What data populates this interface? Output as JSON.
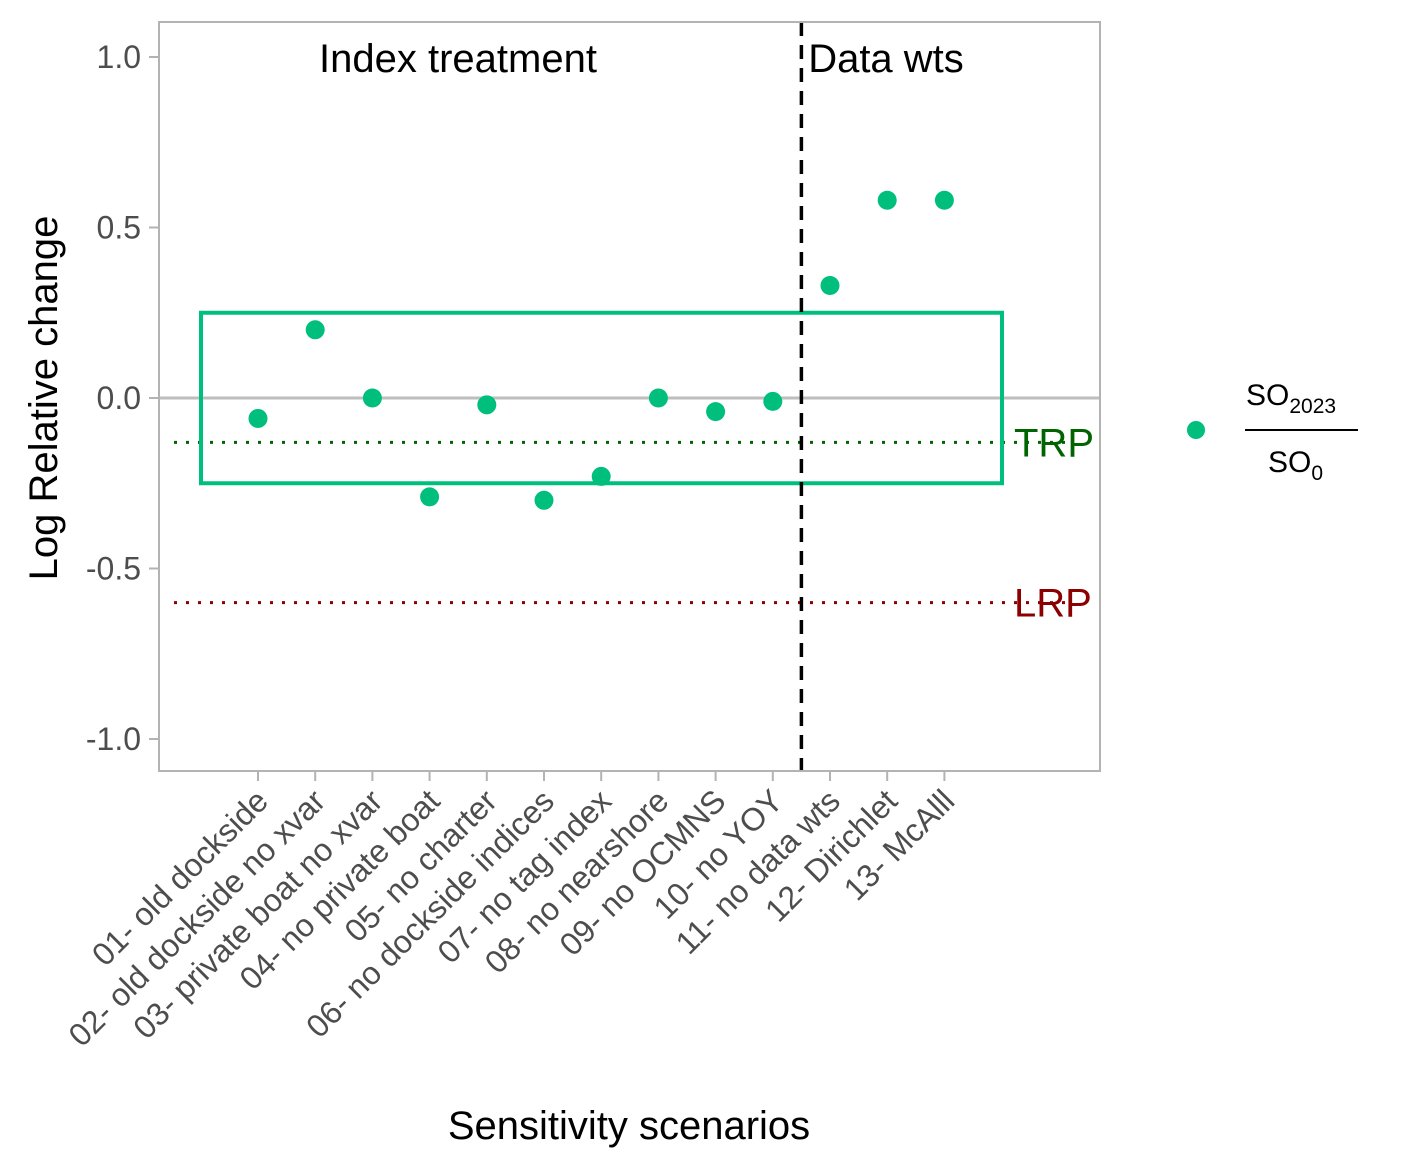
{
  "chart_data": {
    "type": "scatter",
    "xlabel": "Sensitivity scenarios",
    "ylabel": "Log Relative change",
    "ylim": [
      -1.1,
      1.1
    ],
    "yticks": [
      1.0,
      0.5,
      0.0,
      -0.5,
      -1.0
    ],
    "ytick_labels": [
      "1.0",
      "0.5",
      "0.0",
      "-0.5",
      "-1.0"
    ],
    "categories": [
      "01- old dockside",
      "02- old dockside no xvar",
      "03- private boat no xvar",
      "04- no private boat",
      "05- no charter",
      "06- no dockside indices",
      "07- no tag index",
      "08- no nearshore",
      "09- no OCMNS",
      "10- no YOY",
      "11- no data wts",
      "12- Dirichlet",
      "13- McAlll"
    ],
    "series": [
      {
        "legend_numerator": "SO",
        "legend_numerator_sub": "2023",
        "legend_denominator": "SO",
        "legend_denominator_sub": "0",
        "color": "#00BF7D",
        "values": [
          -0.06,
          0.2,
          0.0,
          -0.29,
          -0.02,
          -0.3,
          -0.23,
          0.0,
          -0.04,
          -0.01,
          0.33,
          0.58,
          0.58
        ]
      }
    ],
    "regions": [
      {
        "label": "Index treatment"
      },
      {
        "label": "Data wts"
      }
    ],
    "divider_after_category": 10,
    "reference_lines": [
      {
        "label": "TRP",
        "value": -0.13,
        "color": "#006400",
        "style": "dotted"
      },
      {
        "label": "LRP",
        "value": -0.6,
        "color": "#8B0000",
        "style": "dotted"
      }
    ],
    "zero_line": {
      "value": 0.0,
      "color": "#BEBEBE"
    },
    "box": {
      "ymin": -0.25,
      "ymax": 0.25,
      "color": "#00BF7D"
    },
    "legend_position": "right",
    "grid": false
  }
}
